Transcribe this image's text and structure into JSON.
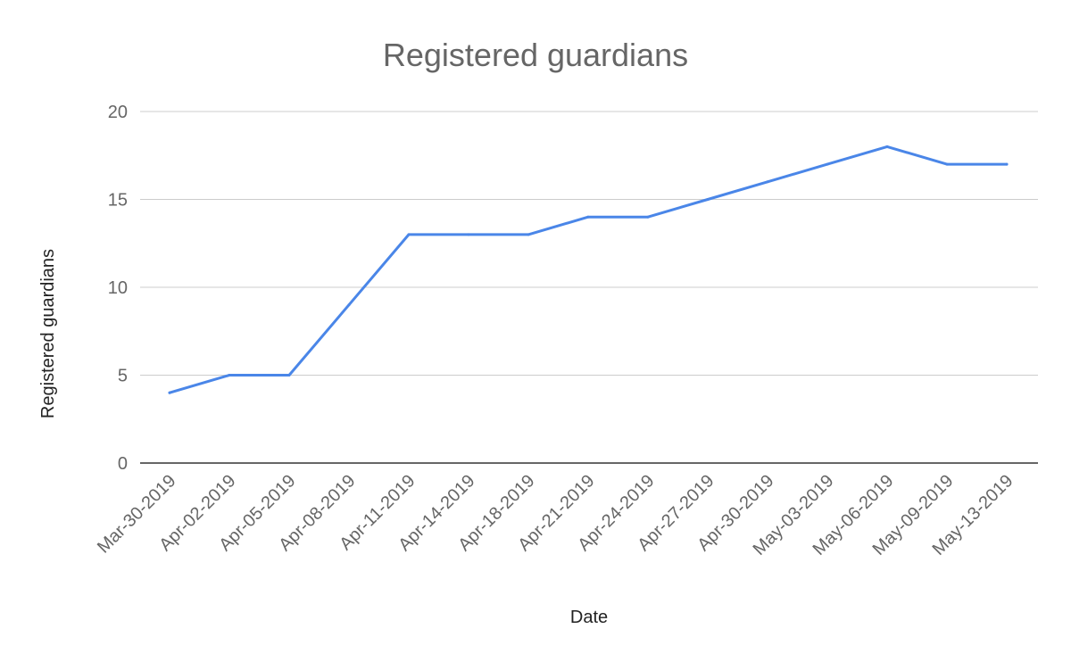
{
  "chart_data": {
    "type": "line",
    "title": "Registered guardians",
    "xlabel": "Date",
    "ylabel": "Registered guardians",
    "ylim": [
      0,
      20
    ],
    "yticks": [
      "0",
      "5",
      "10",
      "15",
      "20"
    ],
    "grid": true,
    "line_color": "#4a86e8",
    "x": [
      "Mar-30-2019",
      "Apr-02-2019",
      "Apr-05-2019",
      "Apr-08-2019",
      "Apr-11-2019",
      "Apr-14-2019",
      "Apr-18-2019",
      "Apr-21-2019",
      "Apr-24-2019",
      "Apr-27-2019",
      "Apr-30-2019",
      "May-03-2019",
      "May-06-2019",
      "May-09-2019",
      "May-13-2019"
    ],
    "series": [
      {
        "values": [
          4,
          5,
          5,
          9,
          13,
          13,
          13,
          14,
          14,
          15,
          16,
          17,
          18,
          17,
          17
        ]
      }
    ]
  }
}
